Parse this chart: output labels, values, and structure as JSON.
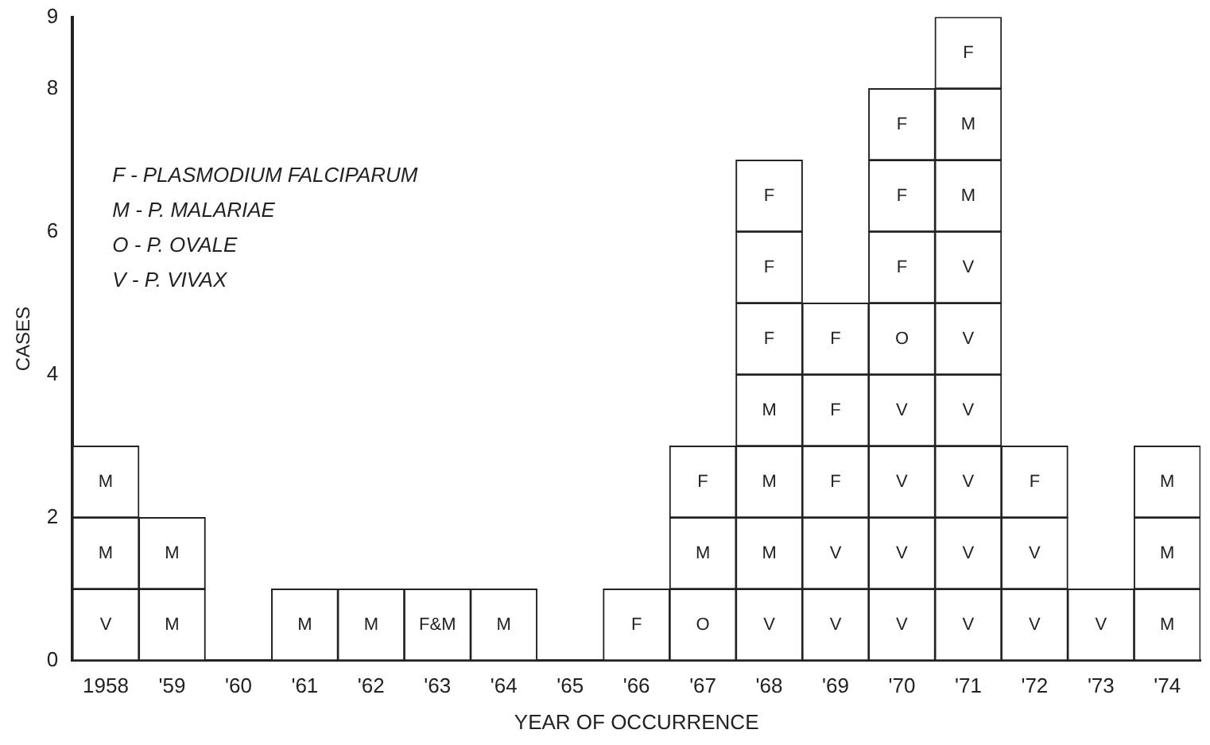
{
  "chart_data": {
    "type": "bar",
    "stacked": true,
    "xlabel": "YEAR OF OCCURRENCE",
    "ylabel": "CASES",
    "categories": [
      "1958",
      "'59",
      "'60",
      "'61",
      "'62",
      "'63",
      "'64",
      "'65",
      "'66",
      "'67",
      "'68",
      "'69",
      "'70",
      "'71",
      "'72",
      "'73",
      "'74"
    ],
    "series": [
      {
        "color": "#ffffff",
        "values": [
          1,
          1,
          null,
          1,
          1,
          1,
          1,
          null,
          1,
          1,
          1,
          1,
          1,
          1,
          1,
          1,
          1
        ],
        "value_labels": [
          "V",
          "M",
          null,
          "M",
          "M",
          "F&M",
          "M",
          null,
          "F",
          "O",
          "V",
          "V",
          "V",
          "V",
          "V",
          "V",
          "M"
        ]
      },
      {
        "color": "#ffffff",
        "values": [
          1,
          1,
          null,
          null,
          null,
          null,
          null,
          null,
          null,
          1,
          1,
          1,
          1,
          1,
          1,
          null,
          1
        ],
        "value_labels": [
          "M",
          "M",
          null,
          null,
          null,
          null,
          null,
          null,
          null,
          "M",
          "M",
          "V",
          "V",
          "V",
          "V",
          null,
          "M"
        ]
      },
      {
        "color": "#ffffff",
        "values": [
          1,
          null,
          null,
          null,
          null,
          null,
          null,
          null,
          null,
          1,
          1,
          1,
          1,
          1,
          1,
          null,
          1
        ],
        "value_labels": [
          "M",
          null,
          null,
          null,
          null,
          null,
          null,
          null,
          null,
          "F",
          "M",
          "F",
          "V",
          "V",
          "F",
          null,
          "M"
        ]
      },
      {
        "color": "#ffffff",
        "values": [
          null,
          null,
          null,
          null,
          null,
          null,
          null,
          null,
          null,
          null,
          1,
          1,
          1,
          1,
          null,
          null,
          null
        ],
        "value_labels": [
          null,
          null,
          null,
          null,
          null,
          null,
          null,
          null,
          null,
          null,
          "M",
          "F",
          "V",
          "V",
          null,
          null,
          null
        ]
      },
      {
        "color": "#ffffff",
        "values": [
          null,
          null,
          null,
          null,
          null,
          null,
          null,
          null,
          null,
          null,
          1,
          1,
          1,
          1,
          null,
          null,
          null
        ],
        "value_labels": [
          null,
          null,
          null,
          null,
          null,
          null,
          null,
          null,
          null,
          null,
          "F",
          "F",
          "O",
          "V",
          null,
          null,
          null
        ]
      },
      {
        "color": "#ffffff",
        "values": [
          null,
          null,
          null,
          null,
          null,
          null,
          null,
          null,
          null,
          null,
          1,
          null,
          1,
          1,
          null,
          null,
          null
        ],
        "value_labels": [
          null,
          null,
          null,
          null,
          null,
          null,
          null,
          null,
          null,
          null,
          "F",
          null,
          "F",
          "V",
          null,
          null,
          null
        ]
      },
      {
        "color": "#ffffff",
        "values": [
          null,
          null,
          null,
          null,
          null,
          null,
          null,
          null,
          null,
          null,
          1,
          null,
          1,
          1,
          null,
          null,
          null
        ],
        "value_labels": [
          null,
          null,
          null,
          null,
          null,
          null,
          null,
          null,
          null,
          null,
          "F",
          null,
          "F",
          "M",
          null,
          null,
          null
        ]
      },
      {
        "color": "#ffffff",
        "values": [
          null,
          null,
          null,
          null,
          null,
          null,
          null,
          null,
          null,
          null,
          null,
          null,
          1,
          1,
          null,
          null,
          null
        ],
        "value_labels": [
          null,
          null,
          null,
          null,
          null,
          null,
          null,
          null,
          null,
          null,
          null,
          null,
          "F",
          "M",
          null,
          null,
          null
        ]
      },
      {
        "color": "#ffffff",
        "values": [
          null,
          null,
          null,
          null,
          null,
          null,
          null,
          null,
          null,
          null,
          null,
          null,
          null,
          1,
          null,
          null,
          null
        ],
        "value_labels": [
          null,
          null,
          null,
          null,
          null,
          null,
          null,
          null,
          null,
          null,
          null,
          null,
          null,
          "F",
          null,
          null,
          null
        ]
      }
    ],
    "ylim": [
      0,
      9
    ],
    "yticks": [
      0,
      2,
      4,
      6,
      8,
      9
    ],
    "grid": false,
    "legend": false,
    "annotations": [
      "F - PLASMODIUM FALCIPARUM",
      "M - P. MALARIAE",
      "O - P. OVALE",
      "V - P. VIVAX"
    ]
  }
}
